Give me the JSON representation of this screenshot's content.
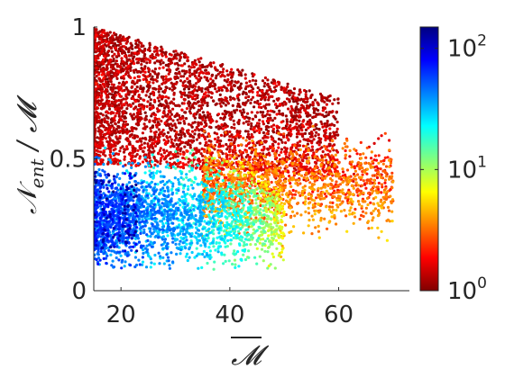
{
  "chart_data": {
    "type": "scatter",
    "title": "",
    "xlabel": "M̄",
    "ylabel": "N_ent / M",
    "xlim": [
      15,
      73
    ],
    "ylim": [
      0,
      1
    ],
    "x_ticks": [
      20,
      40,
      60
    ],
    "x_tick_labels": [
      "20",
      "40",
      "60"
    ],
    "y_ticks": [
      0,
      0.5,
      1
    ],
    "y_tick_labels": [
      "0",
      "0.5",
      "1"
    ],
    "grid": false,
    "legend": "none",
    "colorbar": {
      "scale": "log",
      "range": [
        1,
        150
      ],
      "colormap": "jet (reversed: dark red at 1, dark blue at max)",
      "ticks": [
        1,
        10,
        100
      ],
      "tick_bases": [
        "10",
        "10",
        "10"
      ],
      "tick_exponents": [
        "0",
        "1",
        "2"
      ]
    },
    "description_of_distribution": "Dense cloud of ~6000 points. Upper band (y 0.5-1.0) dark red (color ~1-2). Lower band (y 0.1-0.5) cyan/green/yellow (color ~5-40), higher values near small x. Right tail to x~70 orange at y~0.3-0.5.",
    "clusters": [
      {
        "x_range": [
          15,
          45
        ],
        "y_center": 0.75,
        "color_value_range": [
          1,
          2
        ]
      },
      {
        "x_range": [
          15,
          30
        ],
        "y_center": 0.25,
        "color_value_range": [
          10,
          50
        ]
      },
      {
        "x_range": [
          25,
          50
        ],
        "y_center": 0.3,
        "color_value_range": [
          4,
          12
        ]
      },
      {
        "x_range": [
          40,
          70
        ],
        "y_center": 0.4,
        "color_value_range": [
          1.5,
          4
        ]
      }
    ]
  },
  "colors": {
    "axis": "#262626",
    "background": "#ffffff"
  }
}
